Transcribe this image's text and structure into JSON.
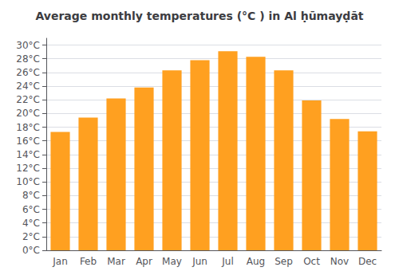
{
  "chart_data": {
    "type": "bar",
    "title": "Average monthly temperatures (°C ) in Al ḥūmayḍāt",
    "categories": [
      "Jan",
      "Feb",
      "Mar",
      "Apr",
      "May",
      "Jun",
      "Jul",
      "Aug",
      "Sep",
      "Oct",
      "Nov",
      "Dec"
    ],
    "values": [
      17.3,
      19.4,
      22.2,
      23.8,
      26.3,
      27.8,
      29.1,
      28.3,
      26.3,
      21.9,
      19.2,
      17.4
    ],
    "color": "#FFA020",
    "ylim": [
      0,
      31
    ],
    "yticks": [
      {
        "value": 0,
        "label": "0°C"
      },
      {
        "value": 2,
        "label": "2°C"
      },
      {
        "value": 4,
        "label": "4°C"
      },
      {
        "value": 6,
        "label": "6°C"
      },
      {
        "value": 8,
        "label": "8°C"
      },
      {
        "value": 10,
        "label": "10°C"
      },
      {
        "value": 12,
        "label": "12°C"
      },
      {
        "value": 14,
        "label": "14°C"
      },
      {
        "value": 16,
        "label": "16°C"
      },
      {
        "value": 18,
        "label": "18°C"
      },
      {
        "value": 20,
        "label": "20°C"
      },
      {
        "value": 22,
        "label": "22°C"
      },
      {
        "value": 24,
        "label": "24°C"
      },
      {
        "value": 26,
        "label": "26°C"
      },
      {
        "value": 28,
        "label": "28°C"
      },
      {
        "value": 30,
        "label": "30°C"
      }
    ],
    "grid": true
  }
}
